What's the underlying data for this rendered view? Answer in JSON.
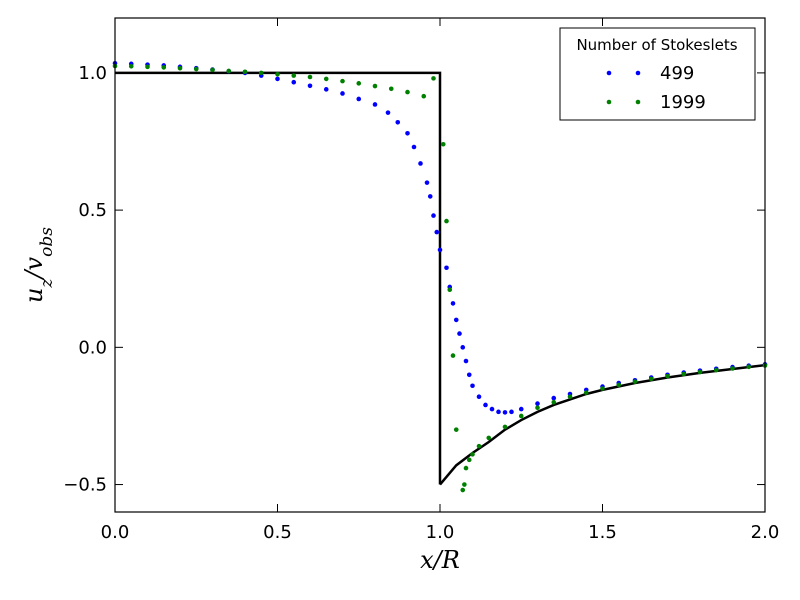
{
  "chart_data": {
    "type": "scatter",
    "xlabel": "x/R",
    "ylabel": "u_z/v_obs",
    "xlim": [
      0.0,
      2.0
    ],
    "ylim": [
      -0.6,
      1.2
    ],
    "x_ticks": [
      0.0,
      0.5,
      1.0,
      1.5,
      2.0
    ],
    "x_tick_labels": [
      "0.0",
      "0.5",
      "1.0",
      "1.5",
      "2.0"
    ],
    "y_ticks": [
      1.0,
      0.5,
      0.0,
      -0.5
    ],
    "y_tick_labels": [
      "1.0",
      "0.5",
      "0.0",
      "−0.5"
    ],
    "grid": false,
    "legend": {
      "title": "Number of Stokeslets",
      "placement": "top-right",
      "entries": [
        "499",
        "1999"
      ]
    },
    "series": [
      {
        "name": "499",
        "color": "#0000ff",
        "marker": "dot",
        "points": [
          [
            0.0,
            1.035
          ],
          [
            0.05,
            1.033
          ],
          [
            0.1,
            1.03
          ],
          [
            0.15,
            1.027
          ],
          [
            0.2,
            1.022
          ],
          [
            0.25,
            1.017
          ],
          [
            0.3,
            1.012
          ],
          [
            0.35,
            1.006
          ],
          [
            0.4,
            1.0
          ],
          [
            0.45,
            0.99
          ],
          [
            0.5,
            0.978
          ],
          [
            0.55,
            0.966
          ],
          [
            0.6,
            0.953
          ],
          [
            0.65,
            0.94
          ],
          [
            0.7,
            0.925
          ],
          [
            0.75,
            0.905
          ],
          [
            0.8,
            0.885
          ],
          [
            0.84,
            0.855
          ],
          [
            0.87,
            0.82
          ],
          [
            0.9,
            0.78
          ],
          [
            0.92,
            0.73
          ],
          [
            0.94,
            0.67
          ],
          [
            0.96,
            0.6
          ],
          [
            0.97,
            0.55
          ],
          [
            0.98,
            0.48
          ],
          [
            0.99,
            0.42
          ],
          [
            1.0,
            0.355
          ],
          [
            1.02,
            0.29
          ],
          [
            1.03,
            0.22
          ],
          [
            1.04,
            0.16
          ],
          [
            1.05,
            0.1
          ],
          [
            1.06,
            0.05
          ],
          [
            1.07,
            0.0
          ],
          [
            1.08,
            -0.05
          ],
          [
            1.09,
            -0.1
          ],
          [
            1.1,
            -0.14
          ],
          [
            1.12,
            -0.18
          ],
          [
            1.14,
            -0.21
          ],
          [
            1.16,
            -0.225
          ],
          [
            1.18,
            -0.235
          ],
          [
            1.2,
            -0.237
          ],
          [
            1.22,
            -0.235
          ],
          [
            1.25,
            -0.225
          ],
          [
            1.3,
            -0.205
          ],
          [
            1.35,
            -0.185
          ],
          [
            1.4,
            -0.17
          ],
          [
            1.45,
            -0.155
          ],
          [
            1.5,
            -0.143
          ],
          [
            1.55,
            -0.13
          ],
          [
            1.6,
            -0.12
          ],
          [
            1.65,
            -0.11
          ],
          [
            1.7,
            -0.1
          ],
          [
            1.75,
            -0.092
          ],
          [
            1.8,
            -0.085
          ],
          [
            1.85,
            -0.078
          ],
          [
            1.9,
            -0.072
          ],
          [
            1.95,
            -0.067
          ],
          [
            2.0,
            -0.062
          ]
        ]
      },
      {
        "name": "1999",
        "color": "#008000",
        "marker": "dot",
        "points": [
          [
            0.0,
            1.025
          ],
          [
            0.05,
            1.024
          ],
          [
            0.1,
            1.022
          ],
          [
            0.15,
            1.02
          ],
          [
            0.2,
            1.017
          ],
          [
            0.25,
            1.014
          ],
          [
            0.3,
            1.011
          ],
          [
            0.35,
            1.007
          ],
          [
            0.4,
            1.004
          ],
          [
            0.45,
            1.0
          ],
          [
            0.5,
            0.995
          ],
          [
            0.55,
            0.99
          ],
          [
            0.6,
            0.985
          ],
          [
            0.65,
            0.978
          ],
          [
            0.7,
            0.97
          ],
          [
            0.75,
            0.962
          ],
          [
            0.8,
            0.952
          ],
          [
            0.85,
            0.942
          ],
          [
            0.9,
            0.93
          ],
          [
            0.95,
            0.915
          ],
          [
            0.98,
            0.98
          ],
          [
            1.01,
            0.74
          ],
          [
            1.02,
            0.46
          ],
          [
            1.03,
            0.21
          ],
          [
            1.04,
            -0.03
          ],
          [
            1.05,
            -0.3
          ],
          [
            1.07,
            -0.52
          ],
          [
            1.075,
            -0.5
          ],
          [
            1.08,
            -0.44
          ],
          [
            1.09,
            -0.41
          ],
          [
            1.1,
            -0.39
          ],
          [
            1.12,
            -0.36
          ],
          [
            1.15,
            -0.33
          ],
          [
            1.2,
            -0.29
          ],
          [
            1.25,
            -0.25
          ],
          [
            1.3,
            -0.22
          ],
          [
            1.35,
            -0.2
          ],
          [
            1.4,
            -0.18
          ],
          [
            1.45,
            -0.165
          ],
          [
            1.5,
            -0.15
          ],
          [
            1.55,
            -0.137
          ],
          [
            1.6,
            -0.125
          ],
          [
            1.65,
            -0.115
          ],
          [
            1.7,
            -0.105
          ],
          [
            1.75,
            -0.097
          ],
          [
            1.8,
            -0.09
          ],
          [
            1.85,
            -0.083
          ],
          [
            1.9,
            -0.077
          ],
          [
            1.95,
            -0.071
          ],
          [
            2.0,
            -0.066
          ]
        ]
      }
    ],
    "reference_curve": {
      "color": "#000000",
      "segments": [
        [
          [
            0.0,
            1.0
          ],
          [
            1.0,
            1.0
          ],
          [
            1.0,
            -0.5
          ]
        ],
        [
          [
            1.0,
            -0.5
          ],
          [
            1.05,
            -0.43
          ],
          [
            1.1,
            -0.385
          ],
          [
            1.15,
            -0.345
          ],
          [
            1.2,
            -0.3
          ],
          [
            1.25,
            -0.265
          ],
          [
            1.3,
            -0.235
          ],
          [
            1.35,
            -0.21
          ],
          [
            1.4,
            -0.19
          ],
          [
            1.45,
            -0.17
          ],
          [
            1.5,
            -0.155
          ],
          [
            1.6,
            -0.13
          ],
          [
            1.7,
            -0.11
          ],
          [
            1.8,
            -0.093
          ],
          [
            1.9,
            -0.079
          ],
          [
            2.0,
            -0.065
          ]
        ]
      ]
    }
  }
}
